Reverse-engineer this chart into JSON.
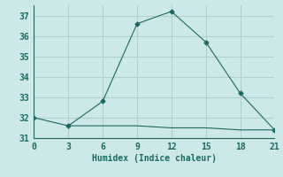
{
  "line1_x": [
    0,
    3,
    6,
    9,
    12,
    15,
    18,
    21
  ],
  "line1_y": [
    32.0,
    31.6,
    32.8,
    36.6,
    37.2,
    35.7,
    33.2,
    31.4
  ],
  "line2_x": [
    3,
    6,
    9,
    12,
    15,
    18,
    21
  ],
  "line2_y": [
    31.6,
    31.6,
    31.6,
    31.5,
    31.5,
    31.4,
    31.4
  ],
  "line_color": "#1a6b5e",
  "bg_color": "#cde8e8",
  "grid_color": "#b0d0d0",
  "xlabel": "Humidex (Indice chaleur)",
  "xlim": [
    0,
    21
  ],
  "ylim": [
    31,
    37.5
  ],
  "xticks": [
    0,
    3,
    6,
    9,
    12,
    15,
    18,
    21
  ],
  "yticks": [
    31,
    32,
    33,
    34,
    35,
    36,
    37
  ],
  "font_color": "#1a6b5e",
  "font_size": 7
}
